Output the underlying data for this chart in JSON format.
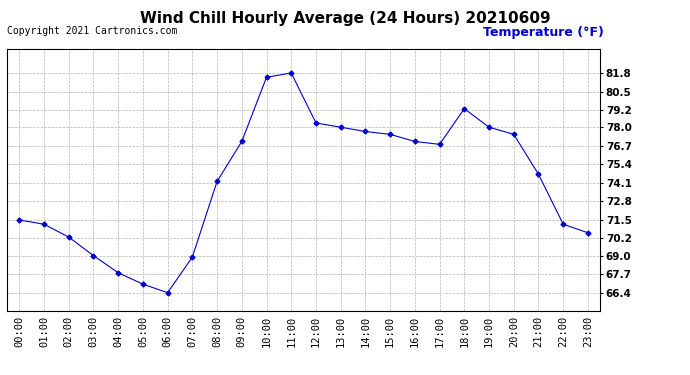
{
  "title": "Wind Chill Hourly Average (24 Hours) 20210609",
  "copyright": "Copyright 2021 Cartronics.com",
  "ylabel": "Temperature (°F)",
  "hours": [
    "00:00",
    "01:00",
    "02:00",
    "03:00",
    "04:00",
    "05:00",
    "06:00",
    "07:00",
    "08:00",
    "09:00",
    "10:00",
    "11:00",
    "12:00",
    "13:00",
    "14:00",
    "15:00",
    "16:00",
    "17:00",
    "18:00",
    "19:00",
    "20:00",
    "21:00",
    "22:00",
    "23:00"
  ],
  "values": [
    71.5,
    71.2,
    70.3,
    69.0,
    67.8,
    67.0,
    66.4,
    68.9,
    74.2,
    77.0,
    81.5,
    81.8,
    78.3,
    78.0,
    77.7,
    77.5,
    77.0,
    76.8,
    79.3,
    78.0,
    77.5,
    74.7,
    71.2,
    70.6
  ],
  "line_color": "#0000CC",
  "marker": "D",
  "marker_size": 2.5,
  "background_color": "#ffffff",
  "grid_color": "#aaaaaa",
  "ylim_min": 65.1,
  "ylim_max": 83.5,
  "yticks": [
    66.4,
    67.7,
    69.0,
    70.2,
    71.5,
    72.8,
    74.1,
    75.4,
    76.7,
    78.0,
    79.2,
    80.5,
    81.8
  ],
  "title_fontsize": 11,
  "ylabel_fontsize": 9,
  "tick_fontsize": 7.5,
  "copyright_fontsize": 7
}
